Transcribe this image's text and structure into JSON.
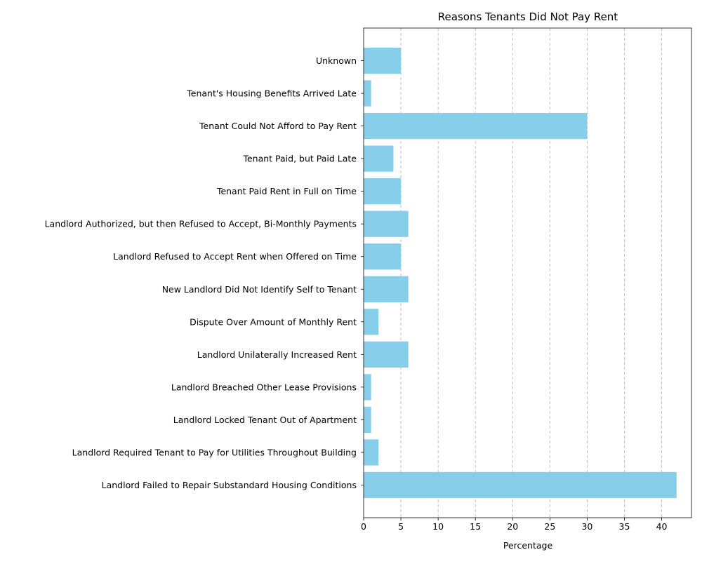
{
  "chart_data": {
    "type": "bar",
    "orientation": "horizontal",
    "title": "Reasons Tenants Did Not Pay Rent",
    "xlabel": "Percentage",
    "ylabel": "",
    "xlim": [
      0,
      44
    ],
    "xticks": [
      0,
      5,
      10,
      15,
      20,
      25,
      30,
      35,
      40
    ],
    "grid": "x-dashed",
    "bar_color": "#87CEEB",
    "categories": [
      "Landlord Failed to Repair Substandard Housing Conditions",
      "Landlord Required Tenant to Pay for Utilities Throughout Building",
      "Landlord Locked Tenant Out of Apartment",
      "Landlord Breached Other Lease Provisions",
      "Landlord Unilaterally Increased Rent",
      "Dispute Over Amount of Monthly Rent",
      "New Landlord Did Not Identify Self to Tenant",
      "Landlord Refused to Accept Rent when Offered on Time",
      "Landlord Authorized, but then Refused to Accept, Bi-Monthly Payments",
      "Tenant Paid Rent in Full on Time",
      "Tenant Paid, but Paid Late",
      "Tenant Could Not Afford to Pay Rent",
      "Tenant's Housing Benefits Arrived Late",
      "Unknown"
    ],
    "values": [
      42,
      2,
      1,
      1,
      6,
      2,
      6,
      5,
      6,
      5,
      4,
      30,
      1,
      5
    ]
  }
}
